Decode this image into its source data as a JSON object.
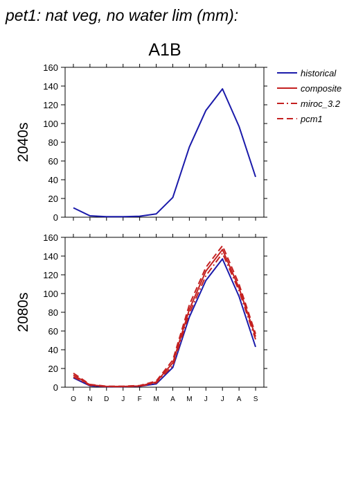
{
  "page": {
    "title": "pet1: nat veg, no water lim (mm):",
    "scenario": "A1B"
  },
  "colors": {
    "historical": "#1a1aaa",
    "future": "#c42020",
    "axis": "#000000"
  },
  "legend": {
    "placement": "right",
    "entries": [
      {
        "label": "historical",
        "style": "solid",
        "color": "#1a1aaa"
      },
      {
        "label": "composite",
        "style": "solid",
        "color": "#c42020"
      },
      {
        "label": "miroc_3.2",
        "style": "dashdot",
        "color": "#c42020"
      },
      {
        "label": "pcm1",
        "style": "dash",
        "color": "#c42020"
      }
    ]
  },
  "chart_data": [
    {
      "type": "line",
      "ylabel": "2040s",
      "categories": [
        "O",
        "N",
        "D",
        "J",
        "F",
        "M",
        "A",
        "M",
        "J",
        "J",
        "A",
        "S"
      ],
      "show_x_labels": false,
      "ylim": [
        0,
        160
      ],
      "yticks": [
        "0",
        "20",
        "40",
        "60",
        "80",
        "100",
        "120",
        "140",
        "160"
      ],
      "grid": false,
      "series": [
        {
          "name": "historical",
          "style": "solid",
          "color": "#1a1aaa",
          "values": [
            10,
            1.5,
            0.5,
            0.5,
            1,
            3.5,
            21,
            75,
            114,
            137,
            97,
            43
          ]
        }
      ]
    },
    {
      "type": "line",
      "ylabel": "2080s",
      "categories": [
        "O",
        "N",
        "D",
        "J",
        "F",
        "M",
        "A",
        "M",
        "J",
        "J",
        "A",
        "S"
      ],
      "show_x_labels": true,
      "ylim": [
        0,
        160
      ],
      "yticks": [
        "0",
        "20",
        "40",
        "60",
        "80",
        "100",
        "120",
        "140",
        "160"
      ],
      "grid": false,
      "series": [
        {
          "name": "historical",
          "style": "solid",
          "color": "#1a1aaa",
          "values": [
            10,
            1.5,
            0.5,
            0.5,
            1,
            3.5,
            21,
            75,
            114,
            137,
            97,
            43
          ]
        },
        {
          "name": "composite",
          "style": "solid",
          "color": "#c42020",
          "values": [
            13,
            2.5,
            0.8,
            0.8,
            1.3,
            5.5,
            26,
            83,
            124,
            147,
            106,
            54
          ]
        },
        {
          "name": "miroc_3.2",
          "style": "dashdot",
          "color": "#c42020",
          "values": [
            11,
            2,
            0.7,
            0.7,
            1,
            4.5,
            23,
            79,
            119,
            143,
            103,
            51
          ]
        },
        {
          "name": "pcm1",
          "style": "dash",
          "color": "#c42020",
          "values": [
            15,
            3,
            1,
            1,
            1.8,
            6.5,
            29,
            88,
            128,
            151,
            110,
            57
          ]
        }
      ]
    }
  ]
}
